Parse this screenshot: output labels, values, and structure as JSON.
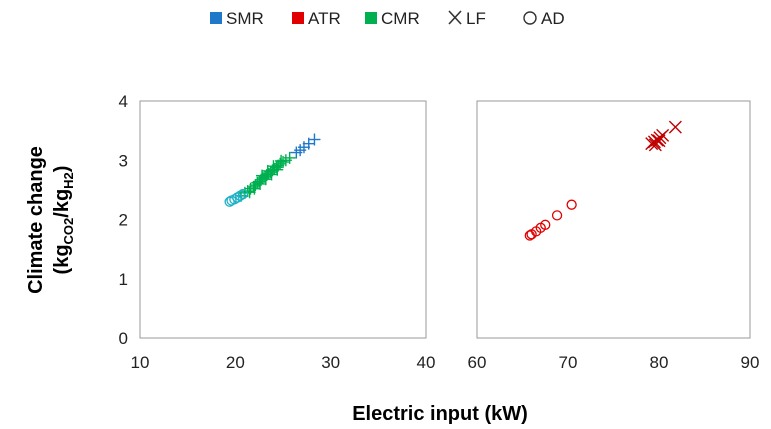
{
  "legend": {
    "items": [
      {
        "label": "SMR",
        "kind": "square",
        "color": "#1f78c8"
      },
      {
        "label": "ATR",
        "kind": "square",
        "color": "#e00000"
      },
      {
        "label": "CMR",
        "kind": "square",
        "color": "#00b050"
      },
      {
        "label": "LF",
        "kind": "x-marker",
        "color": "#333333"
      },
      {
        "label": "AD",
        "kind": "circle-marker",
        "color": "#333333"
      }
    ]
  },
  "axes": {
    "ylabel_main": "Climate change",
    "ylabel_unit": {
      "open": "(kg",
      "sub1": "CO2",
      "mid": "/kg",
      "sub2": "H2",
      "close": ")"
    },
    "xlabel": "Electric input (kW)"
  },
  "chart_data": [
    {
      "type": "scatter",
      "xlim": [
        10,
        40
      ],
      "ylim": [
        0,
        4
      ],
      "xticks": [
        "10",
        "20",
        "30",
        "40"
      ],
      "yticks": [
        "0",
        "1",
        "2",
        "3",
        "4"
      ],
      "grid": false,
      "series": [
        {
          "name": "SMR",
          "marker": "plus",
          "color": "#1f78c8",
          "points": [
            [
              26.4,
              3.13
            ],
            [
              26.8,
              3.17
            ],
            [
              27.2,
              3.22
            ],
            [
              27.7,
              3.28
            ],
            [
              28.3,
              3.35
            ]
          ]
        },
        {
          "name": "CMR",
          "marker": "plus",
          "color": "#00b050",
          "points": [
            [
              20.6,
              2.4
            ],
            [
              21.0,
              2.45
            ],
            [
              21.3,
              2.48
            ],
            [
              21.6,
              2.52
            ],
            [
              21.9,
              2.55
            ],
            [
              22.1,
              2.58
            ],
            [
              22.3,
              2.62
            ],
            [
              22.5,
              2.64
            ],
            [
              22.7,
              2.67
            ],
            [
              22.9,
              2.7
            ],
            [
              23.1,
              2.72
            ],
            [
              23.3,
              2.75
            ],
            [
              23.5,
              2.77
            ],
            [
              23.7,
              2.8
            ],
            [
              23.9,
              2.83
            ],
            [
              24.1,
              2.85
            ],
            [
              24.3,
              2.88
            ],
            [
              24.5,
              2.91
            ],
            [
              24.7,
              2.94
            ],
            [
              25.0,
              2.97
            ],
            [
              25.3,
              3.0
            ],
            [
              25.7,
              3.04
            ],
            [
              22.0,
              2.52
            ],
            [
              22.6,
              2.6
            ],
            [
              23.2,
              2.68
            ],
            [
              23.8,
              2.76
            ],
            [
              24.4,
              2.84
            ],
            [
              21.5,
              2.46
            ],
            [
              22.8,
              2.74
            ],
            [
              23.4,
              2.82
            ],
            [
              24.0,
              2.9
            ],
            [
              24.8,
              2.99
            ]
          ]
        },
        {
          "name": "SMR",
          "marker": "circle",
          "color": "#1fb0c8",
          "points": [
            [
              19.4,
              2.3
            ],
            [
              19.6,
              2.32
            ],
            [
              19.9,
              2.34
            ],
            [
              20.2,
              2.37
            ],
            [
              20.5,
              2.4
            ],
            [
              20.8,
              2.43
            ]
          ]
        }
      ]
    },
    {
      "type": "scatter",
      "xlim": [
        60,
        90
      ],
      "ylim": [
        0,
        4
      ],
      "xticks": [
        "60",
        "70",
        "80",
        "90"
      ],
      "yticks": [],
      "grid": false,
      "series": [
        {
          "name": "ATR",
          "marker": "x",
          "color": "#c00000",
          "points": [
            [
              79.2,
              3.28
            ],
            [
              79.5,
              3.31
            ],
            [
              79.8,
              3.34
            ],
            [
              80.1,
              3.38
            ],
            [
              80.4,
              3.42
            ],
            [
              79.6,
              3.26
            ],
            [
              80.0,
              3.33
            ],
            [
              81.8,
              3.56
            ]
          ]
        },
        {
          "name": "ATR",
          "marker": "circle",
          "color": "#e00000",
          "points": [
            [
              65.8,
              1.73
            ],
            [
              66.0,
              1.75
            ],
            [
              66.5,
              1.8
            ],
            [
              67.0,
              1.86
            ],
            [
              67.5,
              1.91
            ],
            [
              68.8,
              2.07
            ],
            [
              70.4,
              2.25
            ]
          ]
        }
      ]
    }
  ]
}
